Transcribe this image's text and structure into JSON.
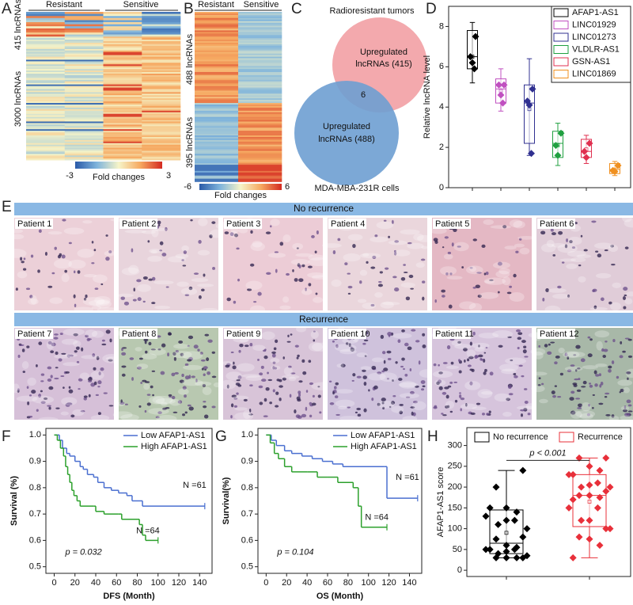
{
  "panel_labels": [
    "A",
    "B",
    "C",
    "D",
    "E",
    "F",
    "G",
    "H"
  ],
  "heatmap_a": {
    "groups": [
      "Resistant",
      "Sensitive"
    ],
    "row_labels": [
      "415 lncRNAs",
      "3000 lncRNAs"
    ],
    "colorbar": {
      "ticks": [
        -3,
        3
      ],
      "label": "Fold changes"
    }
  },
  "heatmap_b": {
    "groups": [
      "Resistant",
      "Sensitive"
    ],
    "row_labels": [
      "488 lncRNAs",
      "395 lncRNAs"
    ],
    "colorbar": {
      "ticks": [
        -6,
        6
      ],
      "label": "Fold changes"
    }
  },
  "venn": {
    "title": "Radioresistant tumors",
    "set_1": [
      "Upregulated",
      "lncRNAs  (415)"
    ],
    "set_2": [
      "Upregulated",
      "lncRNAs  (488)"
    ],
    "overlap": 6,
    "caption": "MDA-MBA-231R  cells"
  },
  "histology": {
    "groups": [
      {
        "title": "No recurrence",
        "patients": [
          "Patient 1",
          "Patient 2",
          "Patient 3",
          "Patient 4",
          "Patient 5",
          "Patient 6"
        ]
      },
      {
        "title": "Recurrence",
        "patients": [
          "Patient 7",
          "Patient 8",
          "Patient 9",
          "Patient 10",
          "Patient 11",
          "Patient 12"
        ]
      }
    ]
  },
  "chart_data": [
    {
      "type": "box",
      "ylabel": "Relative lncRNA level",
      "ylim": [
        0,
        9
      ],
      "yticks": [
        0,
        2,
        4,
        6,
        8
      ],
      "legend": "upper right",
      "series": [
        {
          "name": "AFAP1-AS1",
          "color": "#000000",
          "whisker_low": 5.2,
          "q1": 5.9,
          "median": 6.5,
          "q3": 7.8,
          "whisker_high": 8.2,
          "mean": 6.5,
          "points": [
            7.5,
            6.5,
            6.2,
            5.9
          ]
        },
        {
          "name": "LINC01929",
          "color": "#c050c0",
          "whisker_low": 3.8,
          "q1": 4.2,
          "median": 4.9,
          "q3": 5.4,
          "whisker_high": 5.9,
          "mean": 4.8,
          "points": [
            5.1,
            5.1,
            4.6,
            4.2
          ]
        },
        {
          "name": "LINC01273",
          "color": "#303090",
          "whisker_low": 1.6,
          "q1": 2.2,
          "median": 4.2,
          "q3": 5.1,
          "whisker_high": 6.4,
          "mean": 3.9,
          "points": [
            4.9,
            4.3,
            4.1,
            1.7
          ]
        },
        {
          "name": "VLDLR-AS1",
          "color": "#20a040",
          "whisker_low": 1.1,
          "q1": 1.5,
          "median": 2.2,
          "q3": 2.8,
          "whisker_high": 3.2,
          "mean": 2.1,
          "points": [
            2.7,
            2.1,
            1.6
          ]
        },
        {
          "name": "GSN-AS1",
          "color": "#e03050",
          "whisker_low": 1.2,
          "q1": 1.5,
          "median": 1.8,
          "q3": 2.4,
          "whisker_high": 2.6,
          "mean": 1.9,
          "points": [
            2.2,
            1.8,
            1.5
          ]
        },
        {
          "name": "LINC01869",
          "color": "#f09020",
          "whisker_low": 0.6,
          "q1": 0.7,
          "median": 0.9,
          "q3": 1.2,
          "whisker_high": 1.3,
          "mean": 0.9,
          "points": [
            1.1,
            0.85,
            0.8
          ]
        }
      ]
    },
    {
      "type": "line",
      "step": true,
      "xlabel": "DFS (Month)",
      "ylabel": "Survival (%)",
      "xlim": [
        -8,
        152
      ],
      "xticks": [
        0,
        20,
        40,
        60,
        80,
        100,
        120,
        140
      ],
      "ylim": [
        0.475,
        1.025
      ],
      "yticks": [
        0.5,
        0.6,
        0.7,
        0.8,
        0.9,
        {
          "value": 1,
          "label": "1.0"
        }
      ],
      "legend": "upper right",
      "annotation": "p = 0.032",
      "series": [
        {
          "name": "Low AFAP1-AS1",
          "color": "#4a6fd0",
          "n_label": "N =61",
          "x": [
            0,
            5,
            8,
            12,
            15,
            20,
            25,
            28,
            32,
            38,
            42,
            48,
            55,
            62,
            70,
            75,
            85,
            145
          ],
          "values": [
            1.0,
            0.98,
            0.95,
            0.93,
            0.92,
            0.9,
            0.88,
            0.87,
            0.85,
            0.84,
            0.82,
            0.8,
            0.79,
            0.78,
            0.77,
            0.75,
            0.73,
            0.73
          ]
        },
        {
          "name": "High AFAP1-AS1",
          "color": "#2ca02c",
          "n_label": "N =64",
          "x": [
            0,
            3,
            6,
            9,
            11,
            13,
            15,
            17,
            19,
            22,
            25,
            38,
            40,
            48,
            62,
            65,
            82,
            85,
            88,
            100
          ],
          "values": [
            1.0,
            0.98,
            0.95,
            0.92,
            0.88,
            0.85,
            0.82,
            0.79,
            0.77,
            0.75,
            0.73,
            0.73,
            0.71,
            0.7,
            0.7,
            0.68,
            0.66,
            0.62,
            0.6,
            0.6
          ]
        }
      ]
    },
    {
      "type": "line",
      "step": true,
      "xlabel": "OS (Month)",
      "ylabel": "Survival(%)",
      "xlim": [
        -8,
        152
      ],
      "xticks": [
        0,
        20,
        40,
        60,
        80,
        100,
        120,
        140
      ],
      "ylim": [
        0.475,
        1.025
      ],
      "yticks": [
        0.5,
        0.6,
        0.7,
        0.8,
        0.9,
        {
          "value": 1,
          "label": "1.0"
        }
      ],
      "legend": "upper right",
      "annotation": "p = 0.104",
      "series": [
        {
          "name": "Low AFAP1-AS1",
          "color": "#4a6fd0",
          "n_label": "N =61",
          "x": [
            0,
            5,
            10,
            18,
            25,
            35,
            45,
            55,
            65,
            75,
            115,
            118,
            148
          ],
          "values": [
            1.0,
            0.98,
            0.96,
            0.94,
            0.93,
            0.92,
            0.91,
            0.9,
            0.89,
            0.88,
            0.88,
            0.76,
            0.76
          ]
        },
        {
          "name": "High AFAP1-AS1",
          "color": "#2ca02c",
          "n_label": "N =64",
          "x": [
            0,
            4,
            8,
            12,
            18,
            25,
            40,
            50,
            60,
            70,
            85,
            90,
            93,
            118
          ],
          "values": [
            1.0,
            0.97,
            0.93,
            0.91,
            0.88,
            0.86,
            0.86,
            0.84,
            0.84,
            0.82,
            0.8,
            0.73,
            0.65,
            0.65
          ]
        }
      ]
    },
    {
      "type": "box",
      "ylabel": "AFAP1-AS1 score",
      "ylim": [
        -15,
        343
      ],
      "yticks": [
        0,
        50,
        100,
        150,
        200,
        250,
        300
      ],
      "legend": "top",
      "annotation": "p < 0.001",
      "series": [
        {
          "name": "No recurrence",
          "color": "#000000",
          "whisker_low": 30,
          "q1": 40,
          "median": 65,
          "q3": 145,
          "whisker_high": 240,
          "mean": 90,
          "points": [
            240,
            200,
            150,
            140,
            150,
            130,
            120,
            120,
            110,
            100,
            80,
            75,
            60,
            55,
            50,
            50,
            50,
            45,
            40,
            35,
            30,
            30,
            30,
            30
          ]
        },
        {
          "name": "Recurrence",
          "color": "#e8303a",
          "whisker_low": 30,
          "q1": 105,
          "median": 180,
          "q3": 230,
          "whisker_high": 270,
          "mean": 165,
          "points": [
            270,
            270,
            250,
            240,
            230,
            230,
            210,
            205,
            200,
            200,
            190,
            180,
            180,
            175,
            170,
            150,
            150,
            120,
            120,
            100,
            100,
            80,
            75,
            60,
            30
          ]
        }
      ]
    }
  ]
}
